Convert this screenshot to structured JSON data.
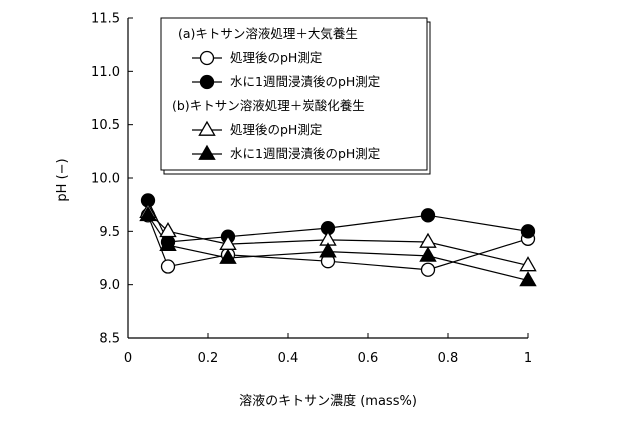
{
  "chart_data": {
    "type": "line",
    "xlabel": "溶液のキトサン濃度 (mass%)",
    "ylabel": "pH (−)",
    "xlim": [
      0,
      1
    ],
    "ylim": [
      8.5,
      11.5
    ],
    "x_ticks": [
      "0",
      "0.2",
      "0.4",
      "0.6",
      "0.8",
      "1"
    ],
    "y_ticks": [
      "8.5",
      "9.0",
      "9.5",
      "10.0",
      "10.5",
      "11.0",
      "11.5"
    ],
    "x_tick_values": [
      0,
      0.2,
      0.4,
      0.6,
      0.8,
      1
    ],
    "y_tick_values": [
      8.5,
      9.0,
      9.5,
      10.0,
      10.5,
      11.0,
      11.5
    ],
    "grid": false,
    "legend_position": "top-center",
    "legend_groups": [
      {
        "title": "(a)キトサン溶液処理＋大気養生",
        "series": [
          0,
          1
        ]
      },
      {
        "title": "(b)キトサン溶液処理＋炭酸化養生",
        "series": [
          2,
          3
        ]
      }
    ],
    "series": [
      {
        "name": "処理後のpH測定",
        "marker": "circle-open",
        "x": [
          0.05,
          0.1,
          0.25,
          0.5,
          0.75,
          1
        ],
        "y": [
          9.65,
          9.17,
          9.28,
          9.22,
          9.14,
          9.43
        ]
      },
      {
        "name": "水に1週間浸漬後のpH測定",
        "marker": "circle-filled",
        "x": [
          0.05,
          0.1,
          0.25,
          0.5,
          0.75,
          1
        ],
        "y": [
          9.79,
          9.4,
          9.45,
          9.53,
          9.65,
          9.5
        ]
      },
      {
        "name": "処理後のpH測定",
        "marker": "triangle-open",
        "x": [
          0.05,
          0.1,
          0.25,
          0.5,
          0.75,
          1
        ],
        "y": [
          9.68,
          9.5,
          9.38,
          9.42,
          9.4,
          9.18
        ]
      },
      {
        "name": "水に1週間浸漬後のpH測定",
        "marker": "triangle-filled",
        "x": [
          0.05,
          0.1,
          0.25,
          0.5,
          0.75,
          1
        ],
        "y": [
          9.65,
          9.37,
          9.25,
          9.31,
          9.27,
          9.04
        ]
      }
    ]
  }
}
